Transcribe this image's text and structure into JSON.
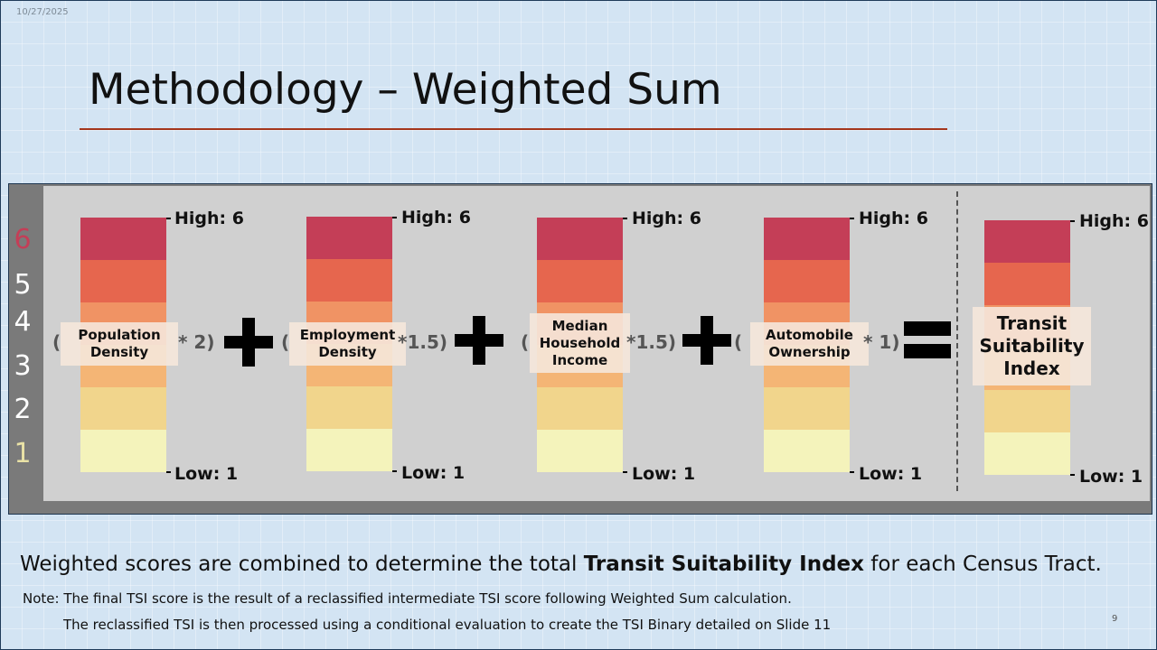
{
  "header": {
    "date": "10/27/2025",
    "title": "Methodology – Weighted Sum"
  },
  "colors": {
    "segments": [
      "#c43e57",
      "#e6664e",
      "#f09364",
      "#f4b575",
      "#f1d58c",
      "#f4f3bb"
    ],
    "scale_numbers": [
      "#c43e57",
      "#ffffff",
      "#ffffff",
      "#ffffff",
      "#ffffff",
      "#e9e2a6"
    ]
  },
  "scale": {
    "numbers": [
      "6",
      "5",
      "4",
      "3",
      "2",
      "1"
    ]
  },
  "factors": [
    {
      "label_line1": "Population",
      "label_line2": "Density",
      "high": "High: 6",
      "low": "Low: 1",
      "open_paren": "(",
      "weight": "* 2)"
    },
    {
      "label_line1": "Employment",
      "label_line2": "Density",
      "high": "High: 6",
      "low": "Low: 1",
      "open_paren": "(",
      "weight": "*1.5)"
    },
    {
      "label_line1": "Median",
      "label_line2": "Household",
      "label_line3": "Income",
      "high": "High: 6",
      "low": "Low: 1",
      "open_paren": "(",
      "weight": "*1.5)"
    },
    {
      "label_line1": "Automobile",
      "label_line2": "Ownership",
      "high": "High: 6",
      "low": "Low: 1",
      "open_paren": "(",
      "weight": "* 1)"
    }
  ],
  "result": {
    "label_line1": "Transit",
    "label_line2": "Suitability",
    "label_line3": "Index",
    "high": "High: 6",
    "low": "Low: 1"
  },
  "footer": {
    "summary_before": "Weighted scores are combined to determine the total ",
    "summary_bold": "Transit Suitability Index",
    "summary_after": " for each Census Tract.",
    "note_line1": "Note: The final TSI score is the result of a reclassified intermediate TSI score following Weighted Sum calculation.",
    "note_line2": "The reclassified TSI is then processed using a conditional evaluation to create the TSI Binary detailed on Slide 11",
    "page_number": "9"
  }
}
